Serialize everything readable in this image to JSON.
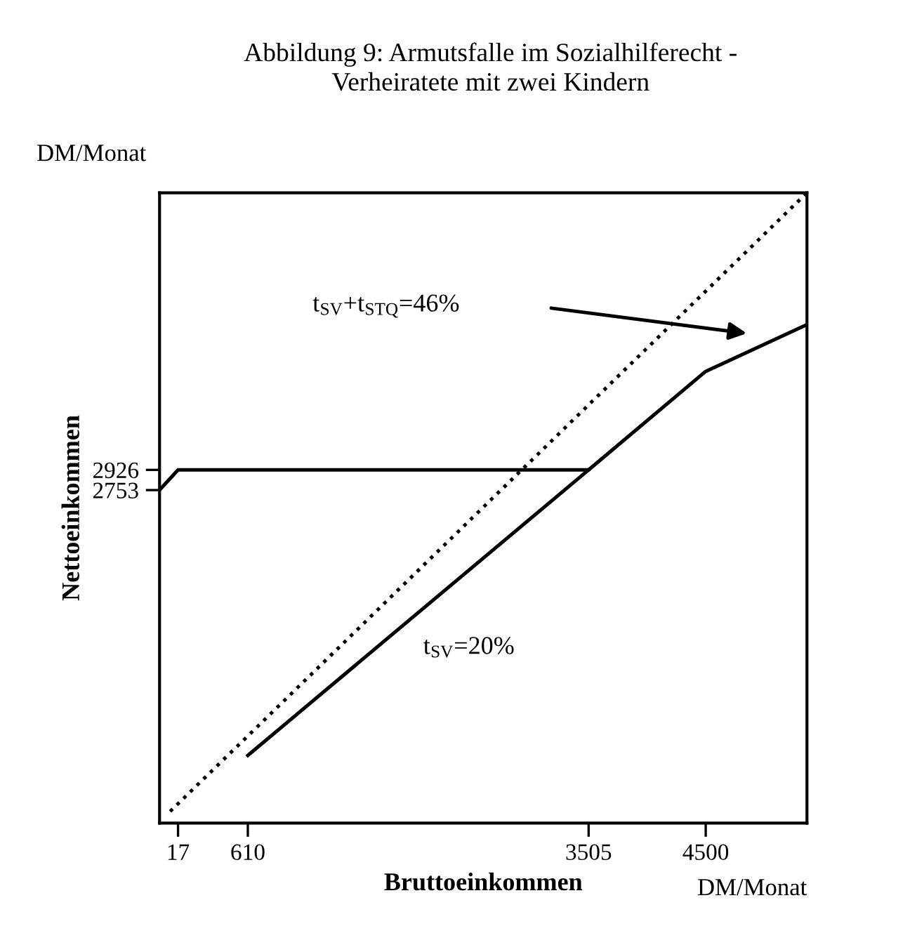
{
  "chart_data": {
    "type": "line",
    "title": "Abbildung 9: Armutsfalle im Sozialhilferecht -\nVerheiratete mit zwei Kindern",
    "xlabel": "Bruttoeinkommen",
    "ylabel": "Nettoeinkommen",
    "series": [
      {
        "x": [
          -50,
          5360
        ],
        "values": [
          0,
          5300
        ],
        "color": "#000000",
        "line_style": "dotted"
      },
      {
        "x": [
          -140,
          17,
          3505,
          4500,
          5360
        ],
        "values": [
          2753,
          2926,
          2926,
          3770,
          4170
        ],
        "color": "#000000",
        "line_style": "solid"
      },
      {
        "x": [
          610,
          3505
        ],
        "values": [
          480,
          2926
        ],
        "color": "#000000",
        "line_style": "solid"
      }
    ],
    "xlim": [
      -140,
      5360
    ],
    "ylim": [
      -100,
      5300
    ],
    "xticks": [
      17,
      610,
      3505,
      4500
    ],
    "yticks": [
      2753,
      2926
    ],
    "grid": false,
    "legend": false,
    "marker": "none",
    "annotations": [
      "t$_{SV}$+t$_{STQ}$=46%",
      "t$_{SV}$=20%",
      "DM/Monat",
      "DM/Monat"
    ]
  }
}
